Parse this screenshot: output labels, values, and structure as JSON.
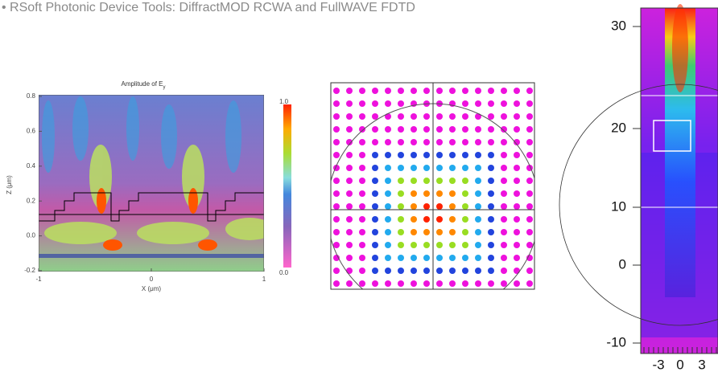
{
  "caption": "• RSoft Photonic Device Tools: DiffractMOD RCWA and FullWAVE FDTD",
  "rcwa_plot": {
    "title": "Amplitude of E",
    "title_sub": "y",
    "y_label": "Z (μm)",
    "x_label": "X (μm)",
    "y_ticks": [
      "0.8",
      "0.6",
      "0.4",
      "0.2",
      "0.0",
      "-0.2"
    ],
    "x_ticks": [
      "-1",
      "0",
      "1"
    ],
    "colorbar_ticks": [
      "1.0",
      "0.0"
    ]
  },
  "fdtd_plot": {
    "y_ticks": [
      "30",
      "20",
      "10",
      "0",
      "-10"
    ],
    "x_ticks": [
      "-3",
      "0",
      "3"
    ]
  }
}
